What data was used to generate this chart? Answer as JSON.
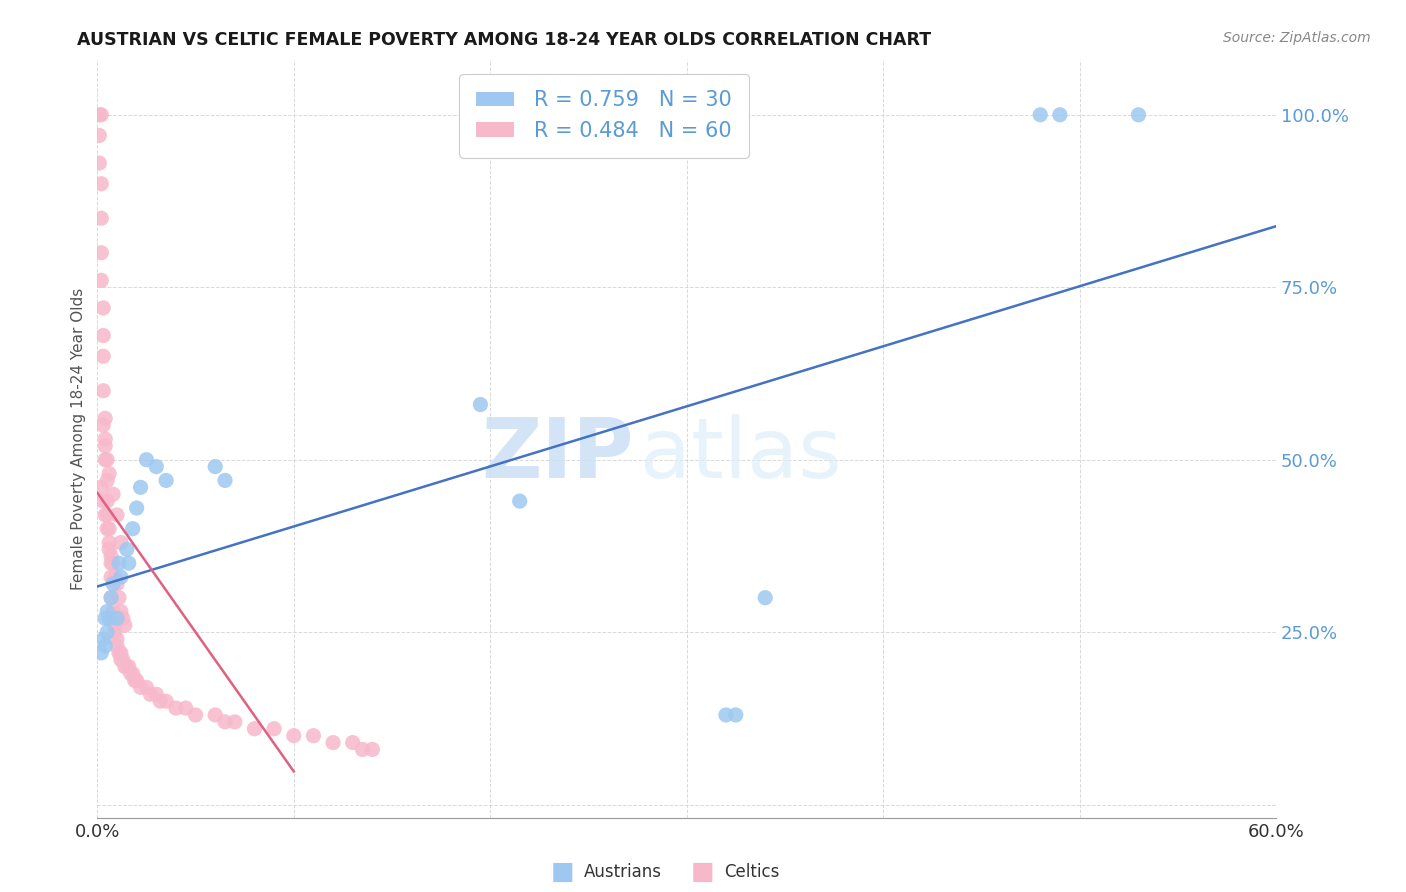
{
  "title": "AUSTRIAN VS CELTIC FEMALE POVERTY AMONG 18-24 YEAR OLDS CORRELATION CHART",
  "source": "Source: ZipAtlas.com",
  "ylabel": "Female Poverty Among 18-24 Year Olds",
  "xlim": [
    0,
    0.6
  ],
  "ylim": [
    -0.02,
    1.08
  ],
  "xticks": [
    0.0,
    0.1,
    0.2,
    0.3,
    0.4,
    0.5,
    0.6
  ],
  "xticklabels": [
    "0.0%",
    "",
    "",
    "",
    "",
    "",
    "60.0%"
  ],
  "yticks": [
    0.0,
    0.25,
    0.5,
    0.75,
    1.0
  ],
  "yticklabels": [
    "",
    "25.0%",
    "50.0%",
    "75.0%",
    "100.0%"
  ],
  "austrians_color": "#9ec8f0",
  "celtics_color": "#f7b8cb",
  "austrians_line_color": "#4472c4",
  "celtics_line_color": "#e06080",
  "legend_text_1": "R = 0.759   N = 30",
  "legend_text_2": "R = 0.484   N = 60",
  "watermark_zip": "ZIP",
  "watermark_atlas": "atlas",
  "aus_x": [
    0.002,
    0.003,
    0.004,
    0.004,
    0.005,
    0.005,
    0.006,
    0.007,
    0.008,
    0.01,
    0.011,
    0.012,
    0.015,
    0.016,
    0.018,
    0.02,
    0.022,
    0.025,
    0.03,
    0.035,
    0.06,
    0.065,
    0.195,
    0.215,
    0.34,
    0.32,
    0.325,
    0.48,
    0.49,
    0.53
  ],
  "aus_y": [
    0.22,
    0.24,
    0.23,
    0.27,
    0.25,
    0.28,
    0.27,
    0.3,
    0.32,
    0.27,
    0.35,
    0.33,
    0.37,
    0.35,
    0.4,
    0.43,
    0.46,
    0.5,
    0.49,
    0.47,
    0.49,
    0.47,
    0.58,
    0.44,
    0.3,
    0.13,
    0.13,
    1.0,
    1.0,
    1.0
  ],
  "cel_x": [
    0.001,
    0.001,
    0.001,
    0.002,
    0.002,
    0.002,
    0.002,
    0.003,
    0.003,
    0.003,
    0.003,
    0.004,
    0.004,
    0.004,
    0.005,
    0.005,
    0.005,
    0.006,
    0.006,
    0.007,
    0.007,
    0.007,
    0.008,
    0.008,
    0.009,
    0.009,
    0.01,
    0.01,
    0.011,
    0.012,
    0.012,
    0.013,
    0.014,
    0.015,
    0.016,
    0.017,
    0.018,
    0.019,
    0.02,
    0.022,
    0.025,
    0.027,
    0.03,
    0.032,
    0.035,
    0.04,
    0.045,
    0.05,
    0.06,
    0.065,
    0.07,
    0.08,
    0.09,
    0.1,
    0.11,
    0.12,
    0.13,
    0.135,
    0.14,
    0.002
  ],
  "cel_y": [
    1.0,
    0.97,
    0.93,
    0.9,
    0.85,
    0.8,
    0.76,
    0.72,
    0.68,
    0.65,
    0.6,
    0.56,
    0.53,
    0.5,
    0.47,
    0.44,
    0.42,
    0.4,
    0.37,
    0.35,
    0.33,
    0.3,
    0.28,
    0.27,
    0.26,
    0.25,
    0.24,
    0.23,
    0.22,
    0.22,
    0.21,
    0.21,
    0.2,
    0.2,
    0.2,
    0.19,
    0.19,
    0.18,
    0.18,
    0.17,
    0.17,
    0.16,
    0.16,
    0.15,
    0.15,
    0.14,
    0.14,
    0.13,
    0.13,
    0.12,
    0.12,
    0.11,
    0.11,
    0.1,
    0.1,
    0.09,
    0.09,
    0.08,
    0.08,
    1.0
  ],
  "cel_extra_x": [
    0.002,
    0.003,
    0.004,
    0.005,
    0.006,
    0.007,
    0.008,
    0.009,
    0.01,
    0.011,
    0.012,
    0.013,
    0.014,
    0.005,
    0.003,
    0.004,
    0.006,
    0.008,
    0.01,
    0.012
  ],
  "cel_extra_y": [
    0.46,
    0.44,
    0.42,
    0.4,
    0.38,
    0.36,
    0.35,
    0.33,
    0.32,
    0.3,
    0.28,
    0.27,
    0.26,
    0.5,
    0.55,
    0.52,
    0.48,
    0.45,
    0.42,
    0.38
  ]
}
